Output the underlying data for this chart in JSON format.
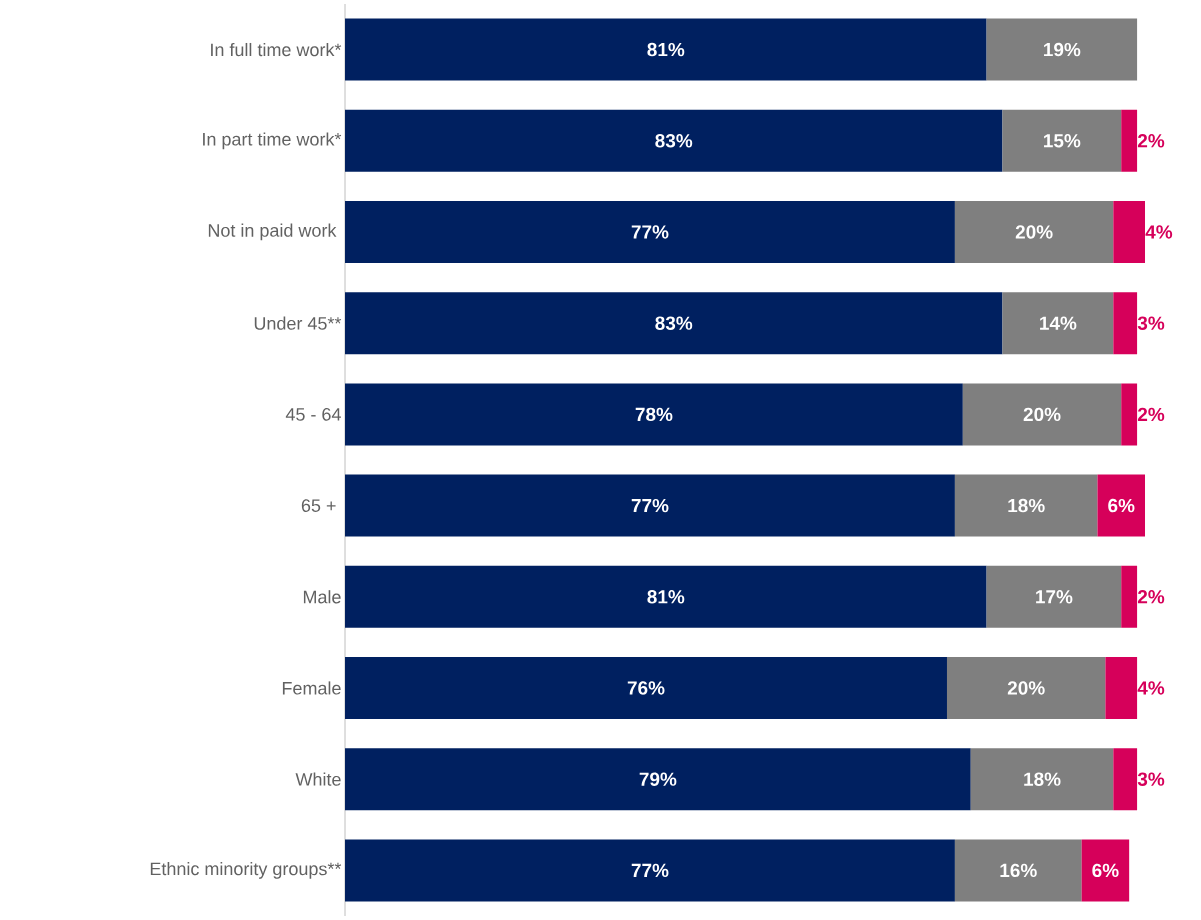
{
  "chart_data": {
    "type": "bar",
    "orientation": "horizontal",
    "stacked": true,
    "tick_labels": "y",
    "categories": [
      "In full time work*",
      "In part time work*",
      "Not in paid work ",
      "Under 45**",
      "45 - 64",
      "65 + ",
      "Male",
      "Female",
      "White",
      "Ethnic minority groups**"
    ],
    "series": [
      {
        "color": "#002060",
        "values": [
          81,
          83,
          77,
          83,
          78,
          77,
          81,
          76,
          79,
          77
        ],
        "value_labels": [
          "81%",
          "83%",
          "77%",
          "83%",
          "78%",
          "77%",
          "81%",
          "76%",
          "79%",
          "77%"
        ]
      },
      {
        "color": "#7f7f7f",
        "values": [
          19,
          15,
          20,
          14,
          20,
          18,
          17,
          20,
          18,
          16
        ],
        "value_labels": [
          "19%",
          "15%",
          "20%",
          "14%",
          "20%",
          "18%",
          "17%",
          "20%",
          "18%",
          "16%"
        ]
      },
      {
        "color": "#d6005a",
        "values": [
          null,
          2,
          4,
          3,
          2,
          6,
          2,
          4,
          3,
          6
        ],
        "value_labels": [
          null,
          "2%",
          "4%",
          "3%",
          "2%",
          "6%",
          "2%",
          "4%",
          "3%",
          "6%"
        ]
      }
    ]
  }
}
